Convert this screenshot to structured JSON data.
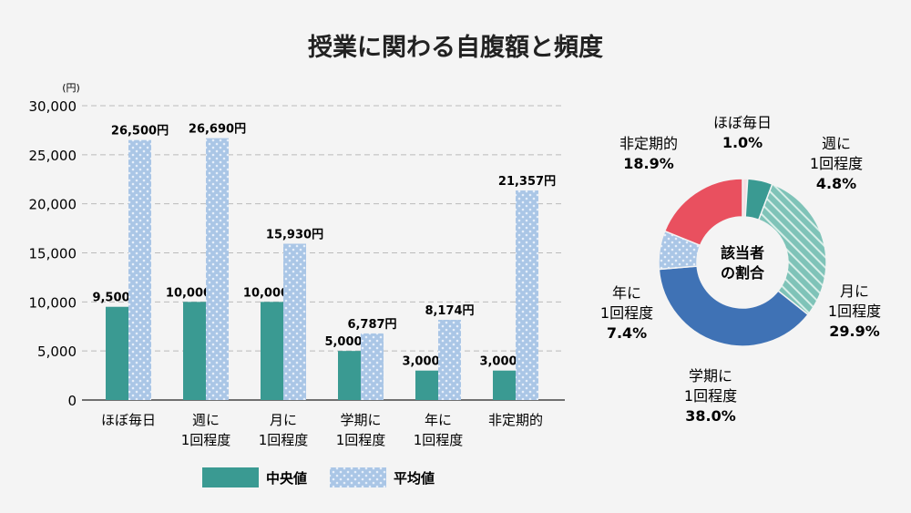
{
  "title": "授業に関わる自腹額と頻度",
  "chart_data": [
    {
      "type": "bar",
      "unit_label": "(円)",
      "ylim": [
        0,
        30000
      ],
      "yticks": [
        "0",
        "5,000",
        "10,000",
        "15,000",
        "20,000",
        "25,000",
        "30,000"
      ],
      "grid": true,
      "categories": [
        [
          "ほぼ毎日"
        ],
        [
          "週に",
          "1回程度"
        ],
        [
          "月に",
          "1回程度"
        ],
        [
          "学期に",
          "1回程度"
        ],
        [
          "年に",
          "1回程度"
        ],
        [
          "非定期的"
        ]
      ],
      "series": [
        {
          "name": "中央値",
          "color": "#3a9a92",
          "values": [
            9500,
            10000,
            10000,
            5000,
            3000,
            3000
          ],
          "labels": [
            "9,500円",
            "10,000円",
            "10,000円",
            "5,000円",
            "3,000円",
            "3,000円"
          ]
        },
        {
          "name": "平均値",
          "color": "#aac6e6",
          "pattern": "dots",
          "values": [
            26500,
            26690,
            15930,
            6787,
            8174,
            21357
          ],
          "labels": [
            "26,500円",
            "26,690円",
            "15,930円",
            "6,787円",
            "8,174円",
            "21,357円"
          ]
        }
      ],
      "legend": "bottom"
    },
    {
      "type": "pie",
      "donut": true,
      "center_label": [
        "該当者",
        "の割合"
      ],
      "slices": [
        {
          "label": [
            "ほぼ毎日"
          ],
          "value": 1.0,
          "pct": "1.0%",
          "color": "#f6dde2"
        },
        {
          "label": [
            "週に",
            "1回程度"
          ],
          "value": 4.8,
          "pct": "4.8%",
          "color": "#3a9a92"
        },
        {
          "label": [
            "月に",
            "1回程度"
          ],
          "value": 29.9,
          "pct": "29.9%",
          "color": "#7fc3b8",
          "pattern": "hatch"
        },
        {
          "label": [
            "学期に",
            "1回程度"
          ],
          "value": 38.0,
          "pct": "38.0%",
          "color": "#3f72b5"
        },
        {
          "label": [
            "年に",
            "1回程度"
          ],
          "value": 7.4,
          "pct": "7.4%",
          "color": "#aac6e6",
          "pattern": "dots"
        },
        {
          "label": [
            "非定期的"
          ],
          "value": 18.9,
          "pct": "18.9%",
          "color": "#e9505f"
        }
      ]
    }
  ]
}
